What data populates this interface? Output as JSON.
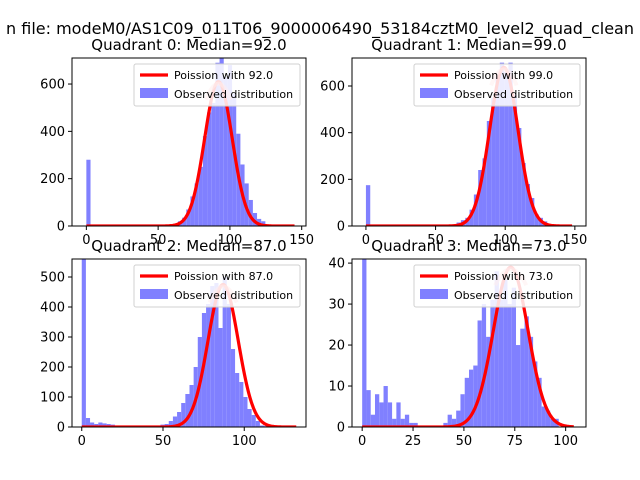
{
  "suptitle": "n file: modeM0/AS1C09_011T06_9000006490_53184cztM0_level2_quad_clean",
  "colors": {
    "hist": "#8080ff",
    "fit": "#ff0000",
    "fit_alpha_overlay": "#ff9090"
  },
  "chart_data": [
    {
      "type": "bar",
      "title": "Quadrant 0: Median=92.0",
      "median": 92.0,
      "xlim": [
        -10,
        153
      ],
      "ylim": [
        0,
        710
      ],
      "xticks": [
        0,
        50,
        100,
        150
      ],
      "yticks": [
        0,
        200,
        400,
        600
      ],
      "legend": [
        "Poission with 92.0",
        "Observed distribution"
      ],
      "legend_loc": "upper right",
      "fit_peak": 610,
      "fit_sigma": 9.6,
      "fit_range": [
        0,
        145
      ],
      "bins": {
        "start": 0,
        "width": 2.9,
        "values": [
          280,
          5,
          3,
          3,
          3,
          2,
          3,
          2,
          2,
          3,
          2,
          3,
          2,
          2,
          3,
          3,
          2,
          3,
          2,
          5,
          5,
          10,
          20,
          35,
          70,
          125,
          180,
          250,
          380,
          480,
          520,
          690,
          720,
          630,
          680,
          560,
          390,
          260,
          180,
          110,
          55,
          30,
          20,
          5
        ]
      }
    },
    {
      "type": "bar",
      "title": "Quadrant 1: Median=99.0",
      "median": 99.0,
      "xlim": [
        -10,
        158
      ],
      "ylim": [
        0,
        720
      ],
      "xticks": [
        0,
        50,
        100,
        150
      ],
      "yticks": [
        0,
        200,
        400,
        600
      ],
      "legend": [
        "Poission with 99.0",
        "Observed distribution"
      ],
      "legend_loc": "upper right",
      "fit_peak": 680,
      "fit_sigma": 10.2,
      "fit_range": [
        0,
        148
      ],
      "bins": {
        "start": 0,
        "width": 3.1,
        "values": [
          175,
          4,
          3,
          3,
          2,
          3,
          2,
          2,
          3,
          2,
          2,
          3,
          2,
          2,
          3,
          2,
          4,
          3,
          4,
          4,
          6,
          15,
          25,
          35,
          70,
          135,
          240,
          290,
          450,
          550,
          640,
          700,
          660,
          700,
          560,
          420,
          270,
          180,
          120,
          50,
          35,
          20,
          5
        ]
      }
    },
    {
      "type": "bar",
      "title": "Quadrant 2: Median=87.0",
      "median": 87.0,
      "xlim": [
        -6,
        138
      ],
      "ylim": [
        0,
        560
      ],
      "xticks": [
        0,
        50,
        100
      ],
      "yticks": [
        0,
        100,
        200,
        300,
        400,
        500
      ],
      "legend": [
        "Poission with 87.0",
        "Observed distribution"
      ],
      "legend_loc": "upper right",
      "fit_peak": 475,
      "fit_sigma": 9.3,
      "fit_range": [
        0,
        132
      ],
      "bins": {
        "start": 0,
        "width": 2.55,
        "values": [
          560,
          30,
          15,
          10,
          15,
          12,
          10,
          8,
          5,
          3,
          3,
          3,
          2,
          3,
          2,
          2,
          2,
          3,
          5,
          8,
          10,
          20,
          35,
          50,
          80,
          110,
          140,
          200,
          300,
          380,
          410,
          470,
          480,
          330,
          500,
          410,
          260,
          180,
          150,
          100,
          60,
          40,
          20,
          5,
          3,
          2
        ]
      }
    },
    {
      "type": "bar",
      "title": "Quadrant 3: Median=73.0",
      "median": 73.0,
      "xlim": [
        -5,
        110
      ],
      "ylim": [
        0,
        41
      ],
      "xticks": [
        0,
        25,
        50,
        75,
        100
      ],
      "yticks": [
        0,
        10,
        20,
        30,
        40
      ],
      "legend": [
        "Poission with 73.0",
        "Observed distribution"
      ],
      "legend_loc": "upper right",
      "fit_peak": 39,
      "fit_sigma": 8.5,
      "fit_range": [
        0,
        104
      ],
      "bins": {
        "start": 0,
        "width": 2.1,
        "values": [
          41,
          9,
          3,
          8,
          6,
          10,
          6,
          2,
          6,
          2,
          3,
          1,
          1,
          0,
          0,
          0,
          0,
          0,
          0,
          1,
          3,
          2,
          4,
          8,
          12,
          14,
          15,
          26,
          30,
          22,
          31,
          38,
          31,
          36,
          30,
          34,
          20,
          24,
          27,
          22,
          16,
          12,
          5,
          4,
          2,
          2
        ]
      }
    }
  ]
}
